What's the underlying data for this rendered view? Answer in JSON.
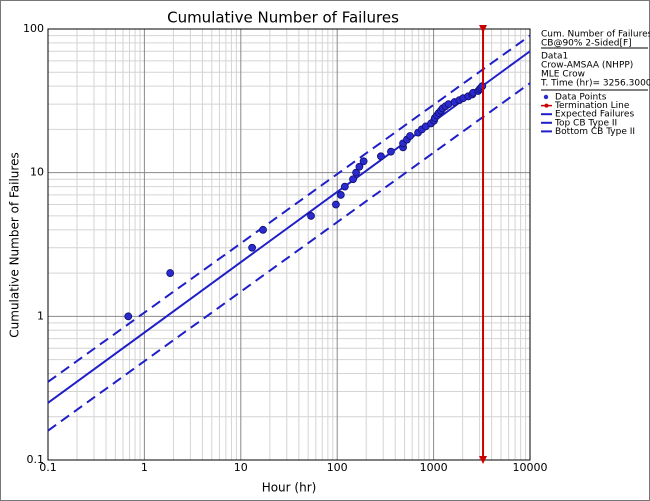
{
  "chart_data": {
    "type": "scatter",
    "title": "Cumulative Number of Failures",
    "x_label": "Hour (hr)",
    "y_label": "Cumulative Number of Failures",
    "log_x": true,
    "log_y": true,
    "grid": true,
    "minor_grid": true,
    "xlim": [
      0.1,
      10000
    ],
    "ylim": [
      0.1,
      100
    ],
    "xticks": [
      0.1,
      1,
      10,
      100,
      1000,
      10000
    ],
    "yticks": [
      0.1,
      1,
      10,
      100
    ],
    "legend_position": "right",
    "legend_info": [
      "Cum. Number of Failures",
      "CB@90% 2-Sided[F]",
      "Data1",
      "Crow-AMSAA (NHPP)",
      "MLE Crow",
      "T. Time (hr)= 3256.3000"
    ],
    "series": [
      {
        "name": "Data Points",
        "kind": "points",
        "color": "#2a2ad0",
        "x": [
          0.68,
          1.85,
          13.1,
          17,
          53.5,
          97,
          109,
          120,
          146,
          157,
          170,
          188,
          284,
          361,
          482,
          482,
          530,
          570,
          690,
          755,
          830,
          940,
          1010,
          1030,
          1080,
          1130,
          1190,
          1240,
          1330,
          1430,
          1650,
          1850,
          2030,
          2290,
          2520,
          2570,
          2900,
          3000,
          3100,
          3200
        ],
        "values": [
          1,
          2,
          3,
          4,
          5,
          6,
          7,
          8,
          9,
          10,
          11,
          12,
          13,
          14,
          15,
          16,
          17,
          18,
          19,
          20,
          21,
          22,
          23,
          24,
          25,
          26,
          27,
          28,
          29,
          30,
          31,
          32,
          33,
          34,
          35,
          36,
          37,
          38,
          39,
          40
        ]
      },
      {
        "name": "Termination Line",
        "kind": "vline",
        "color": "#cc0000",
        "x": [
          3256.3,
          3256.3
        ],
        "values": [
          0.1,
          100
        ]
      },
      {
        "name": "Expected Failures",
        "kind": "solid",
        "color": "#1f1fc8",
        "x": [
          0.1,
          10000
        ],
        "values": [
          0.25,
          70
        ]
      },
      {
        "name": "Top CB Type II",
        "kind": "dashed",
        "color": "#1f1fc8",
        "x": [
          0.1,
          10000
        ],
        "values": [
          0.35,
          90
        ]
      },
      {
        "name": "Bottom CB Type II",
        "kind": "dashed",
        "color": "#1f1fc8",
        "x": [
          0.1,
          10000
        ],
        "values": [
          0.16,
          42
        ]
      }
    ]
  }
}
